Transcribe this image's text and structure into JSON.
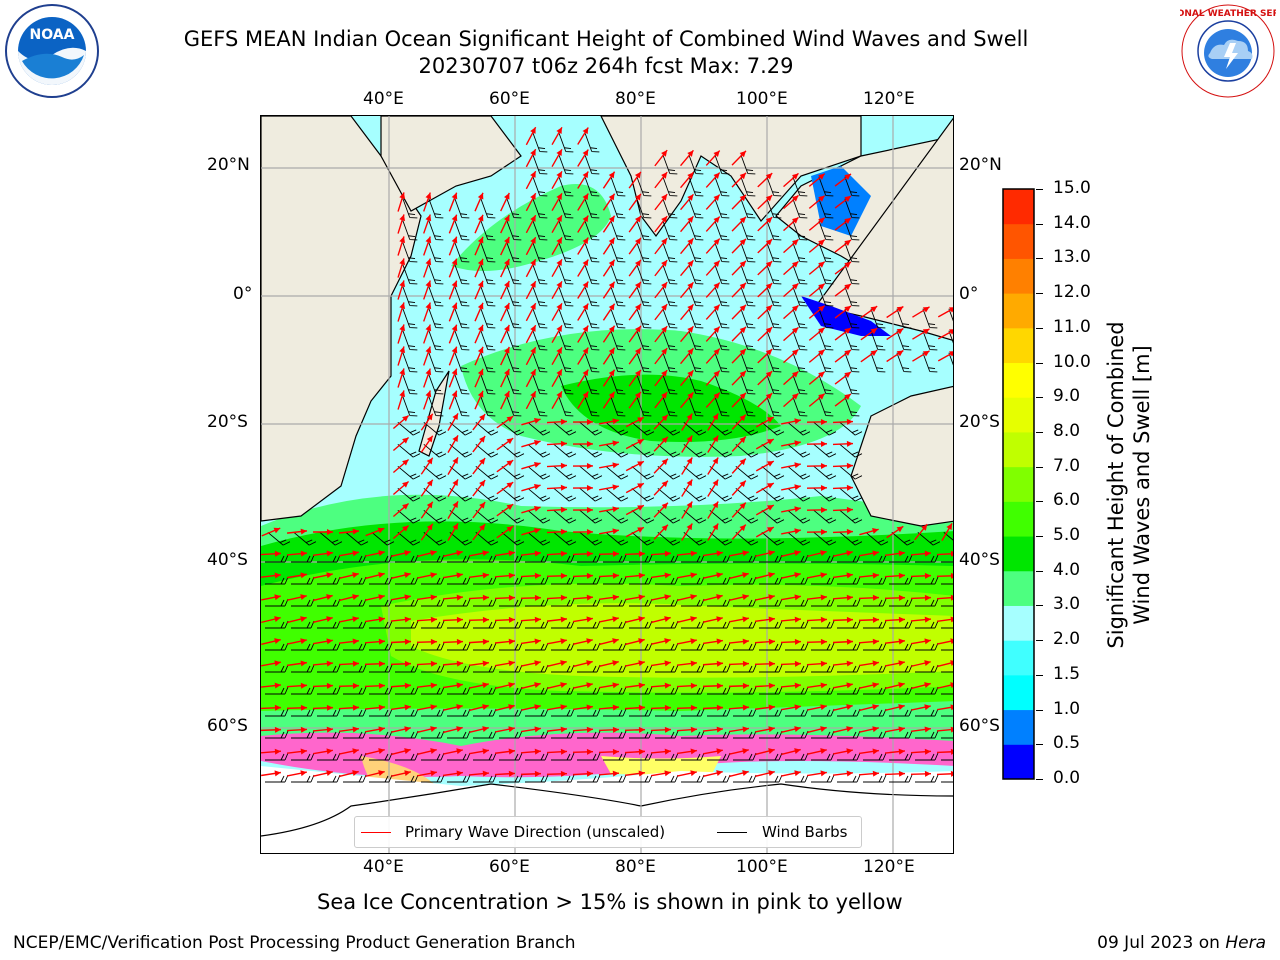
{
  "header": {
    "title_line1": "GEFS MEAN Indian Ocean Significant Height of Combined Wind Waves and Swell",
    "title_line2": "20230707 t06z 264h fcst   Max: 7.29"
  },
  "logos": {
    "left": "noaa-logo",
    "right": "national-weather-service-logo",
    "left_text": "NOAA",
    "right_text": "NATIONAL WEATHER SERVICE"
  },
  "map": {
    "lon_labels": [
      "40°E",
      "60°E",
      "80°E",
      "100°E",
      "120°E"
    ],
    "lat_labels": [
      "20°N",
      "0°",
      "20°S",
      "40°S",
      "60°S"
    ],
    "right_lat_labels": [
      "20°N",
      "0°",
      "20°S",
      "40°S",
      "60°S"
    ],
    "land_color": "#efecdf",
    "ice_colors": [
      "#ff66cc",
      "#ffd27a",
      "#ffff66"
    ]
  },
  "colorbar": {
    "title_line1": "Significant Height of Combined",
    "title_line2": "Wind Waves and Swell [m]",
    "ticks": [
      "15.0",
      "14.0",
      "13.0",
      "12.0",
      "11.0",
      "10.0",
      "9.0",
      "8.0",
      "7.0",
      "6.0",
      "5.0",
      "4.0",
      "3.0",
      "2.0",
      "1.5",
      "1.0",
      "0.5",
      "0.0"
    ],
    "colors": [
      "#0000ff",
      "#0080ff",
      "#00ffff",
      "#40ffff",
      "#a6ffff",
      "#4dff80",
      "#00e600",
      "#40ff00",
      "#80ff00",
      "#c0ff00",
      "#e6ff00",
      "#ffff00",
      "#ffd700",
      "#ffaa00",
      "#ff8000",
      "#ff5500",
      "#ff2a00",
      "#ff0000"
    ]
  },
  "legend": {
    "wave_label": "Primary Wave Direction (unscaled)",
    "wind_label": "Wind Barbs",
    "wave_color": "#ff0000",
    "wind_color": "#000000"
  },
  "footer": {
    "caption": "Sea Ice Concentration > 15% is shown in pink to yellow",
    "credit": "NCEP/EMC/Verification Post Processing Product Generation Branch",
    "date": "09 Jul 2023 on",
    "host": "Hera"
  }
}
